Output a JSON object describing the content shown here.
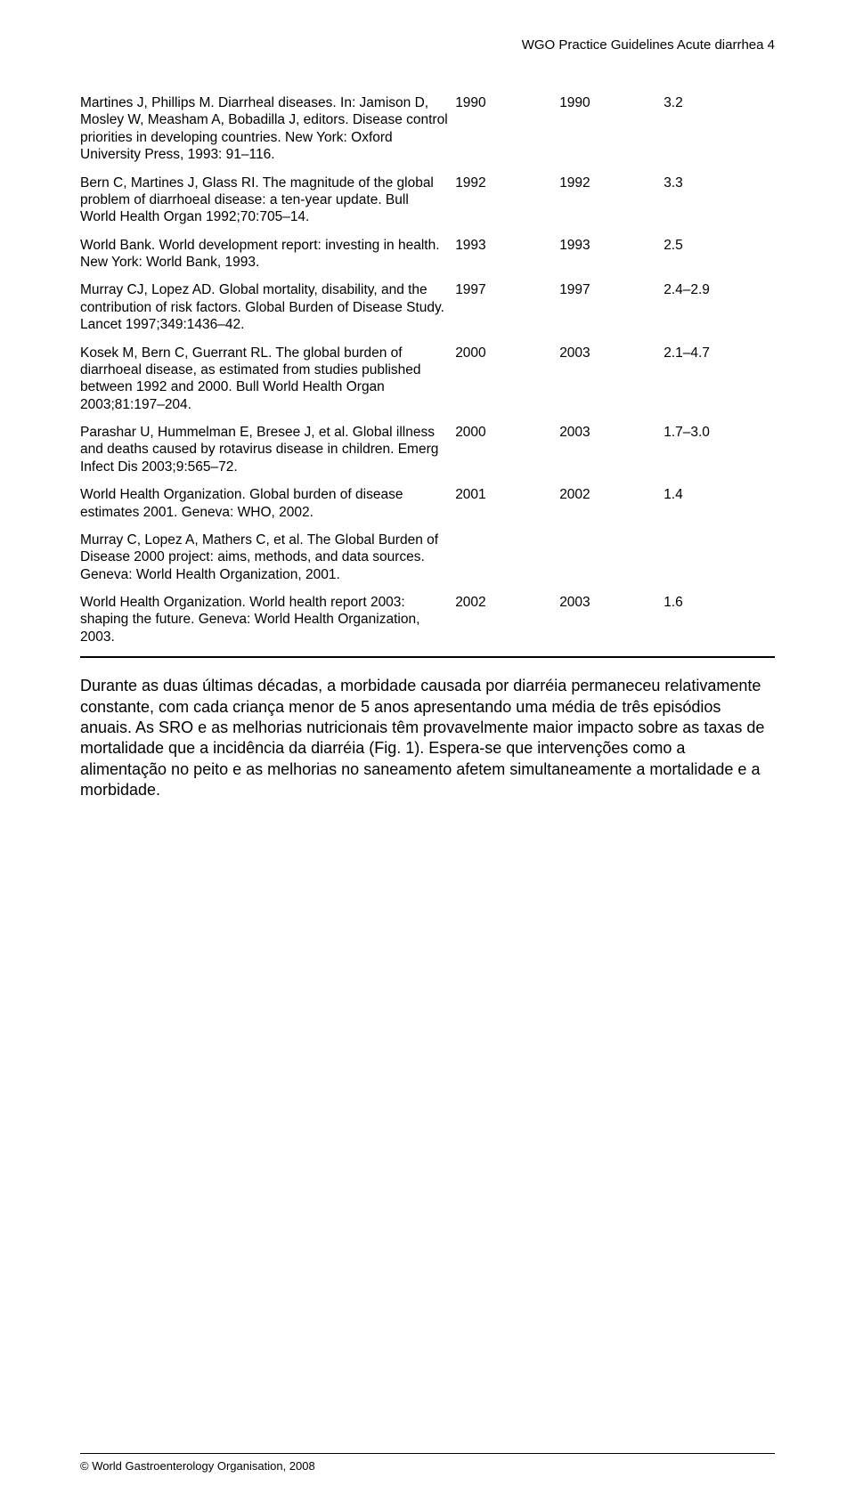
{
  "header": {
    "text": "WGO Practice Guidelines   Acute diarrhea   4"
  },
  "table": {
    "rows": [
      {
        "ref": "Martines J, Phillips M. Diarrheal diseases. In: Jamison D, Mosley W, Measham A, Bobadilla J, editors. Disease control priorities in developing countries. New York: Oxford University Press, 1993: 91–116.",
        "y1": "1990",
        "y2": "1990",
        "v": "3.2"
      },
      {
        "ref": "Bern C, Martines J, Glass RI. The magnitude of the global problem of diarrhoeal disease: a ten-year update. Bull World Health Organ 1992;70:705–14.",
        "y1": "1992",
        "y2": "1992",
        "v": "3.3"
      },
      {
        "ref": "World Bank. World development report: investing in health. New York: World Bank, 1993.",
        "y1": "1993",
        "y2": "1993",
        "v": "2.5"
      },
      {
        "ref": "Murray CJ, Lopez AD. Global mortality, disability, and the contribution of risk factors. Global Burden of Disease Study. Lancet 1997;349:1436–42.",
        "y1": "1997",
        "y2": "1997",
        "v": "2.4–2.9"
      },
      {
        "ref": "Kosek M, Bern C, Guerrant RL. The global burden of diarrhoeal disease, as estimated from studies published between 1992 and 2000. Bull World Health Organ 2003;81:197–204.",
        "y1": "2000",
        "y2": "2003",
        "v": "2.1–4.7"
      },
      {
        "ref": "Parashar U, Hummelman E, Bresee J, et al. Global illness and deaths caused by rotavirus disease in children. Emerg Infect Dis 2003;9:565–72.",
        "y1": "2000",
        "y2": "2003",
        "v": "1.7–3.0"
      },
      {
        "ref": "World Health Organization. Global burden of disease estimates 2001. Geneva: WHO, 2002.",
        "y1": "2001",
        "y2": "2002",
        "v": "1.4"
      },
      {
        "ref": "Murray C, Lopez A, Mathers C, et al. The Global Burden of Disease 2000 project: aims, methods, and data sources. Geneva: World Health Organization, 2001.",
        "y1": "",
        "y2": "",
        "v": ""
      },
      {
        "ref": "World Health Organization. World health report 2003: shaping the future. Geneva: World Health Organization, 2003.",
        "y1": "2002",
        "y2": "2003",
        "v": "1.6"
      }
    ]
  },
  "paragraph": {
    "text": "Durante as duas últimas décadas, a morbidade causada por diarréia permaneceu relativamente constante, com cada criança menor de 5 anos apresentando uma média de três episódios anuais. As SRO e as melhorias nutricionais têm provavelmente maior impacto sobre as taxas de mortalidade que a incidência da diarréia (Fig. 1). Espera-se que intervenções como a alimentação no peito e as melhorias no saneamento afetem simultaneamente a mortalidade e a morbidade."
  },
  "footer": {
    "text": "© World Gastroenterology Organisation, 2008"
  }
}
